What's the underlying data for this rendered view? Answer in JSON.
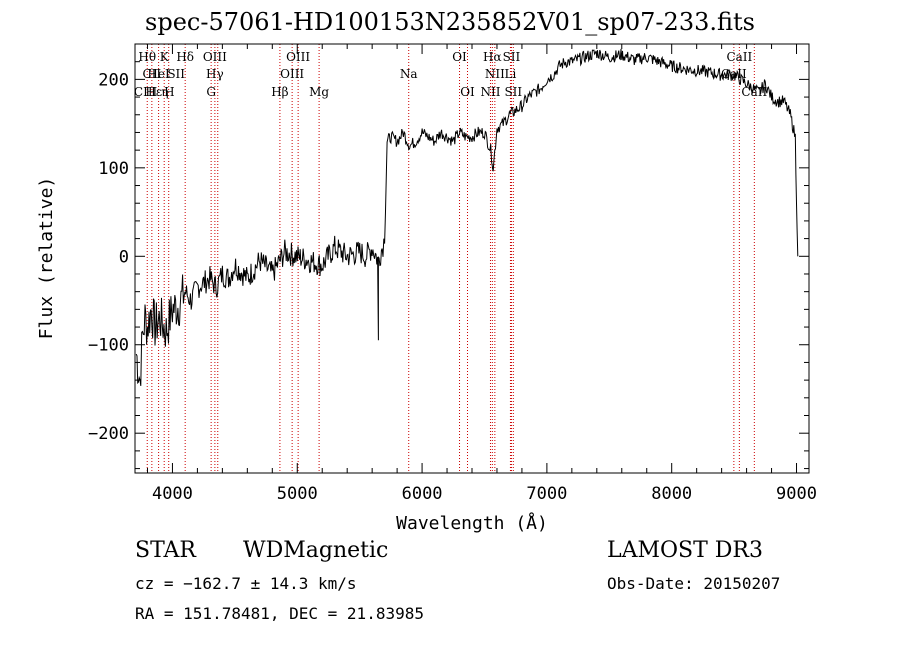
{
  "chart_data": {
    "type": "line",
    "title": "spec-57061-HD100153N235852V01_sp07-233.fits",
    "xlabel": "Wavelength (Å)",
    "ylabel": "Flux (relative)",
    "xlim": [
      3700,
      9100
    ],
    "ylim": [
      -245,
      240
    ],
    "xticks": [
      4000,
      5000,
      6000,
      7000,
      8000,
      9000
    ],
    "yticks": [
      -200,
      -100,
      0,
      100,
      200
    ],
    "grid": false,
    "series": [
      {
        "name": "flux",
        "x": [
          3710,
          3740,
          3760,
          3780,
          3800,
          3830,
          3860,
          3900,
          3950,
          4000,
          4050,
          4100,
          4150,
          4200,
          4250,
          4300,
          4350,
          4400,
          4450,
          4500,
          4600,
          4700,
          4800,
          4900,
          5000,
          5100,
          5200,
          5300,
          5400,
          5500,
          5550,
          5600,
          5650,
          5680,
          5700,
          5720,
          5750,
          5800,
          5850,
          5900,
          5950,
          6000,
          6050,
          6100,
          6150,
          6200,
          6250,
          6300,
          6350,
          6400,
          6450,
          6500,
          6550,
          6570,
          6600,
          6650,
          6700,
          6750,
          6800,
          6850,
          6900,
          6950,
          7000,
          7050,
          7100,
          7150,
          7200,
          7300,
          7400,
          7500,
          7600,
          7700,
          7800,
          7900,
          8000,
          8100,
          8200,
          8300,
          8400,
          8500,
          8550,
          8600,
          8650,
          8700,
          8750,
          8800,
          8850,
          8900,
          8950,
          8990,
          9000,
          9010
        ],
        "values": [
          -110,
          -140,
          -90,
          -70,
          -80,
          -60,
          -80,
          -70,
          -85,
          -60,
          -55,
          -40,
          -50,
          -35,
          -30,
          -25,
          -35,
          -20,
          -25,
          -10,
          -25,
          -5,
          -20,
          5,
          0,
          -5,
          -10,
          10,
          0,
          5,
          0,
          10,
          -5,
          10,
          20,
          130,
          135,
          130,
          140,
          125,
          130,
          140,
          135,
          130,
          140,
          135,
          130,
          140,
          135,
          135,
          140,
          140,
          120,
          100,
          145,
          150,
          160,
          165,
          170,
          180,
          185,
          190,
          200,
          205,
          215,
          220,
          220,
          225,
          230,
          225,
          228,
          222,
          225,
          220,
          215,
          212,
          210,
          208,
          205,
          205,
          200,
          195,
          190,
          185,
          195,
          180,
          175,
          175,
          160,
          135,
          60,
          0
        ]
      }
    ],
    "spectral_lines": [
      {
        "label": "Hθ",
        "x": 3798,
        "row": 1
      },
      {
        "label": "CII",
        "x": 3835,
        "row": 2
      },
      {
        "label": "CIII",
        "x": 3785,
        "row": 3
      },
      {
        "label": "Hε",
        "x": 3850,
        "row": 3
      },
      {
        "label": "K",
        "x": 3934,
        "row": 1
      },
      {
        "label": "HeI",
        "x": 3889,
        "row": 2
      },
      {
        "label": "η",
        "x": 3940,
        "row": 3
      },
      {
        "label": "Hδ",
        "x": 4102,
        "row": 1
      },
      {
        "label": "SII",
        "x": 4030,
        "row": 2
      },
      {
        "label": "H",
        "x": 3975,
        "row": 3
      },
      {
        "label": "OIII",
        "x": 4340,
        "row": 1
      },
      {
        "label": "Hγ",
        "x": 4340,
        "row": 2
      },
      {
        "label": "G",
        "x": 4310,
        "row": 3
      },
      {
        "label": "OIII",
        "x": 5007,
        "row": 1
      },
      {
        "label": "OIII",
        "x": 4959,
        "row": 2
      },
      {
        "label": "Hβ",
        "x": 4861,
        "row": 3
      },
      {
        "label": "Mg",
        "x": 5175,
        "row": 3
      },
      {
        "label": "Na",
        "x": 5893,
        "row": 2
      },
      {
        "label": "OI",
        "x": 6300,
        "row": 1
      },
      {
        "label": "OI",
        "x": 6364,
        "row": 3
      },
      {
        "label": "Hα",
        "x": 6563,
        "row": 1
      },
      {
        "label": "SII",
        "x": 6716,
        "row": 1
      },
      {
        "label": "NII",
        "x": 6583,
        "row": 2
      },
      {
        "label": "Li",
        "x": 6708,
        "row": 2
      },
      {
        "label": "NII",
        "x": 6548,
        "row": 3
      },
      {
        "label": "SII",
        "x": 6731,
        "row": 3
      },
      {
        "label": "CaII",
        "x": 8542,
        "row": 1
      },
      {
        "label": "CaII",
        "x": 8498,
        "row": 2
      },
      {
        "label": "CaII",
        "x": 8662,
        "row": 3
      }
    ],
    "line_marker_x": [
      3798,
      3835,
      3889,
      3934,
      3970,
      4102,
      4310,
      4340,
      4363,
      4861,
      4959,
      5007,
      5175,
      5893,
      6300,
      6364,
      6548,
      6563,
      6583,
      6708,
      6716,
      6731,
      8498,
      8542,
      8662
    ],
    "marker_color": "#cc0000"
  },
  "info": {
    "object_class": "STAR",
    "subclass": "WDMagnetic",
    "survey": "LAMOST DR3",
    "cz": "cz = −162.7 ± 14.3 km/s",
    "obs_date": "Obs-Date: 20150207",
    "coords": "RA = 151.78481, DEC =  21.83985"
  }
}
